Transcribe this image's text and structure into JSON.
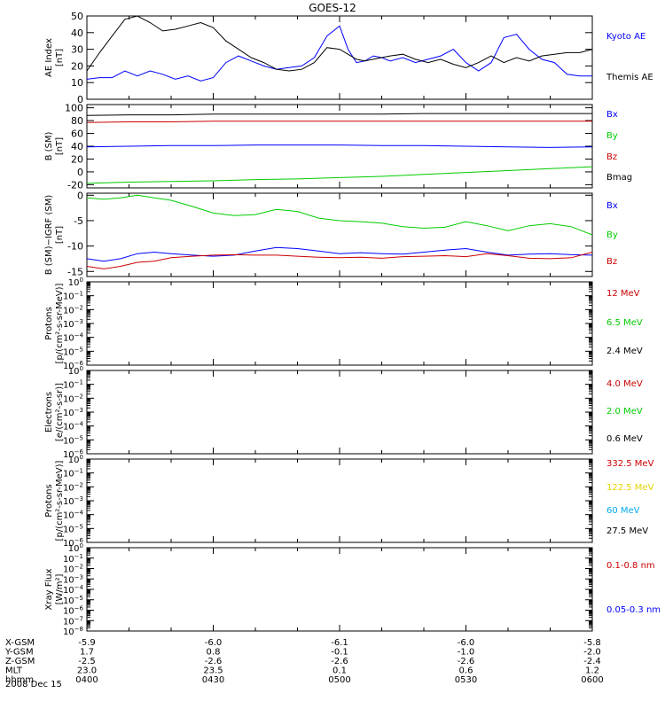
{
  "title": "GOES-12",
  "date_label": "2008 Dec 15",
  "ephemeris": {
    "rows": [
      {
        "label": "X-GSM",
        "values": [
          "-5.9",
          "-6.0",
          "-6.1",
          "-6.0",
          "-5.8"
        ]
      },
      {
        "label": "Y-GSM",
        "values": [
          "1.7",
          "0.8",
          "-0.1",
          "-1.0",
          "-2.0"
        ]
      },
      {
        "label": "Z-GSM",
        "values": [
          "-2.5",
          "-2.6",
          "-2.6",
          "-2.6",
          "-2.4"
        ]
      },
      {
        "label": "MLT",
        "values": [
          "23.0",
          "23.5",
          "0.1",
          "0.6",
          "1.2"
        ]
      },
      {
        "label": "hhmm",
        "values": [
          "0400",
          "0430",
          "0500",
          "0530",
          "0600"
        ]
      }
    ]
  },
  "chart_data": [
    {
      "type": "line",
      "ylabel": [
        "AE Index",
        "[nT]"
      ],
      "ylim": [
        0,
        50
      ],
      "yticks": [
        0,
        10,
        20,
        30,
        40,
        50
      ],
      "xlim": [
        0,
        120
      ],
      "x_unit": "minutes after 0400",
      "series": [
        {
          "name": "Kyoto AE",
          "color": "#0000ff",
          "x": [
            0,
            3,
            6,
            9,
            12,
            15,
            18,
            21,
            24,
            27,
            30,
            33,
            36,
            39,
            42,
            45,
            48,
            51,
            54,
            57,
            60,
            62,
            64,
            66,
            68,
            70,
            72,
            75,
            78,
            81,
            84,
            87,
            90,
            93,
            96,
            99,
            102,
            105,
            108,
            111,
            114,
            117,
            120
          ],
          "y": [
            12,
            13,
            13,
            17,
            14,
            17,
            15,
            12,
            14,
            11,
            13,
            22,
            26,
            23,
            20,
            18,
            19,
            20,
            25,
            38,
            44,
            30,
            22,
            23,
            26,
            25,
            23,
            25,
            22,
            24,
            26,
            30,
            22,
            17,
            22,
            37,
            39,
            30,
            24,
            22,
            15,
            14,
            14
          ]
        },
        {
          "name": "Themis AE",
          "color": "#000000",
          "x": [
            0,
            3,
            6,
            9,
            12,
            15,
            18,
            21,
            24,
            27,
            30,
            33,
            36,
            39,
            42,
            45,
            48,
            51,
            54,
            57,
            60,
            62,
            64,
            66,
            68,
            70,
            72,
            75,
            78,
            81,
            84,
            87,
            90,
            93,
            96,
            99,
            102,
            105,
            108,
            111,
            114,
            117,
            120
          ],
          "y": [
            17,
            28,
            38,
            48,
            50,
            46,
            41,
            42,
            44,
            46,
            43,
            35,
            30,
            25,
            22,
            18,
            17,
            18,
            22,
            31,
            30,
            27,
            24,
            23,
            24,
            25,
            26,
            27,
            24,
            22,
            24,
            21,
            19,
            22,
            26,
            22,
            25,
            23,
            26,
            27,
            28,
            28,
            30
          ]
        }
      ]
    },
    {
      "type": "line",
      "ylabel": [
        "B (SM)",
        "[nT]"
      ],
      "ylim": [
        -25,
        105
      ],
      "yticks": [
        -20,
        0,
        20,
        40,
        60,
        80,
        100
      ],
      "xlim": [
        0,
        120
      ],
      "series": [
        {
          "name": "Bx",
          "color": "#0000ff",
          "x": [
            0,
            10,
            20,
            30,
            40,
            50,
            60,
            70,
            80,
            90,
            100,
            110,
            120
          ],
          "y": [
            39,
            40,
            41,
            41,
            42,
            42,
            42,
            41,
            41,
            40,
            39,
            38,
            39
          ]
        },
        {
          "name": "By",
          "color": "#00cc00",
          "x": [
            0,
            10,
            20,
            30,
            40,
            50,
            60,
            70,
            80,
            90,
            100,
            110,
            120
          ],
          "y": [
            -18,
            -16,
            -15,
            -14,
            -12,
            -11,
            -9,
            -7,
            -4,
            -1,
            2,
            5,
            8
          ]
        },
        {
          "name": "Bz",
          "color": "#cc0000",
          "x": [
            0,
            10,
            20,
            30,
            40,
            50,
            60,
            70,
            80,
            90,
            100,
            110,
            120
          ],
          "y": [
            77,
            78,
            78,
            79,
            79,
            79,
            79,
            79,
            79,
            79,
            79,
            79,
            79
          ]
        },
        {
          "name": "Bmag",
          "color": "#000000",
          "x": [
            0,
            10,
            20,
            30,
            40,
            50,
            60,
            70,
            80,
            90,
            100,
            110,
            120
          ],
          "y": [
            88,
            89,
            89,
            90,
            90,
            90,
            90,
            90,
            91,
            91,
            91,
            91,
            91
          ]
        }
      ]
    },
    {
      "type": "line",
      "ylabel": [
        "B (SM)−IGRF (SM)",
        "[nT]"
      ],
      "ylim": [
        -16,
        0.4
      ],
      "yticks": [
        -15,
        -10,
        -5,
        0
      ],
      "xlim": [
        0,
        120
      ],
      "series": [
        {
          "name": "Bx",
          "color": "#0000ff",
          "x": [
            0,
            4,
            8,
            12,
            16,
            20,
            25,
            30,
            35,
            40,
            45,
            50,
            55,
            60,
            65,
            70,
            75,
            80,
            85,
            90,
            95,
            100,
            105,
            110,
            115,
            120
          ],
          "y": [
            -12.5,
            -13,
            -12.5,
            -11.5,
            -11.2,
            -11.5,
            -11.8,
            -12,
            -11.8,
            -11,
            -10.3,
            -10.5,
            -11,
            -11.5,
            -11.3,
            -11.5,
            -11.6,
            -11.2,
            -10.8,
            -10.5,
            -11.2,
            -11.8,
            -11.6,
            -11.5,
            -11.7,
            -11.8
          ]
        },
        {
          "name": "By",
          "color": "#00cc00",
          "x": [
            0,
            4,
            8,
            12,
            16,
            20,
            25,
            30,
            35,
            40,
            45,
            50,
            55,
            60,
            65,
            70,
            75,
            80,
            85,
            90,
            95,
            100,
            105,
            110,
            115,
            120
          ],
          "y": [
            -0.5,
            -0.8,
            -0.5,
            0,
            -0.5,
            -1,
            -2.2,
            -3.5,
            -4,
            -3.8,
            -2.8,
            -3.2,
            -4.5,
            -5,
            -5.2,
            -5.5,
            -6.2,
            -6.5,
            -6.3,
            -5.2,
            -6,
            -7,
            -6,
            -5.6,
            -6.2,
            -7.8
          ]
        },
        {
          "name": "Bz",
          "color": "#cc0000",
          "x": [
            0,
            4,
            8,
            12,
            16,
            20,
            25,
            30,
            35,
            40,
            45,
            50,
            55,
            60,
            65,
            70,
            75,
            80,
            85,
            90,
            95,
            100,
            105,
            110,
            115,
            120
          ],
          "y": [
            -14,
            -14.5,
            -14,
            -13.2,
            -13,
            -12.3,
            -12,
            -11.8,
            -11.7,
            -11.8,
            -11.8,
            -12,
            -12.2,
            -12.3,
            -12.2,
            -12.4,
            -12.1,
            -12,
            -11.9,
            -12.1,
            -11.5,
            -11.9,
            -12.4,
            -12.5,
            -12.3,
            -11.2
          ]
        }
      ]
    },
    {
      "type": "line",
      "ylabel": [
        "Protons",
        "[p/(cm²-s-sr-MeV)]"
      ],
      "yscale": "log",
      "ylim_exp": [
        -6,
        0
      ],
      "series": [
        {
          "name": "12 MeV",
          "color": "#cc0000"
        },
        {
          "name": "6.5 MeV",
          "color": "#00cc00"
        },
        {
          "name": "2.4 MeV",
          "color": "#000000"
        }
      ]
    },
    {
      "type": "line",
      "ylabel": [
        "Electrons",
        "[e/(cm²-s-sr)]"
      ],
      "yscale": "log",
      "ylim_exp": [
        -6,
        0
      ],
      "series": [
        {
          "name": "4.0 MeV",
          "color": "#cc0000"
        },
        {
          "name": "2.0 MeV",
          "color": "#00cc00"
        },
        {
          "name": "0.6 MeV",
          "color": "#000000"
        }
      ]
    },
    {
      "type": "line",
      "ylabel": [
        "Protons",
        "[p/(cm²-s-sr-MeV)]"
      ],
      "yscale": "log",
      "ylim_exp": [
        -6,
        0
      ],
      "series": [
        {
          "name": "332.5 MeV",
          "color": "#cc0000"
        },
        {
          "name": "122.5 MeV",
          "color": "#e6d200"
        },
        {
          "name": "60 MeV",
          "color": "#00aaee"
        },
        {
          "name": "27.5 MeV",
          "color": "#000000"
        }
      ]
    },
    {
      "type": "line",
      "ylabel": [
        "Xray Flux",
        "[W/m²]"
      ],
      "yscale": "log",
      "ylim_exp": [
        -8,
        0
      ],
      "series": [
        {
          "name": "0.1-0.8 nm",
          "color": "#cc0000"
        },
        {
          "name": "0.05-0.3 nm",
          "color": "#0000ff"
        }
      ]
    }
  ]
}
